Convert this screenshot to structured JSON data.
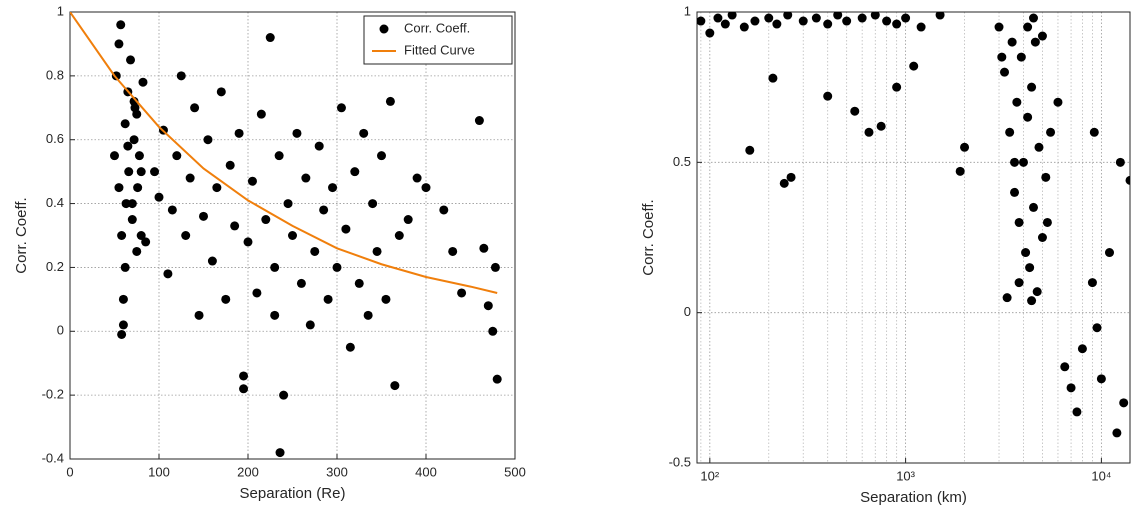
{
  "chart_data": [
    {
      "type": "scatter",
      "xlabel": "Separation (Re)",
      "ylabel": "Corr. Coeff.",
      "xlim": [
        0,
        500
      ],
      "ylim": [
        -0.4,
        1
      ],
      "xticks": [
        0,
        100,
        200,
        300,
        400,
        500
      ],
      "yticks": [
        -0.4,
        -0.2,
        0,
        0.2,
        0.4,
        0.6,
        0.8,
        1
      ],
      "grid": true,
      "legend": "upper right",
      "series": [
        {
          "name": "Corr. Coeff.",
          "type": "scatter",
          "color": "#000000",
          "x": [
            50,
            52,
            55,
            57,
            58,
            60,
            62,
            63,
            65,
            66,
            68,
            70,
            72,
            73,
            75,
            76,
            78,
            80,
            82,
            55,
            60,
            65,
            70,
            75,
            80,
            58,
            62,
            72,
            85,
            95,
            100,
            105,
            110,
            115,
            120,
            125,
            130,
            135,
            140,
            145,
            150,
            155,
            160,
            165,
            170,
            175,
            180,
            185,
            190,
            195,
            200,
            205,
            210,
            215,
            220,
            225,
            230,
            235,
            240,
            245,
            250,
            255,
            260,
            265,
            270,
            275,
            280,
            285,
            290,
            295,
            300,
            305,
            310,
            315,
            320,
            325,
            330,
            335,
            340,
            345,
            350,
            355,
            360,
            365,
            370,
            380,
            390,
            400,
            420,
            430,
            440,
            460,
            465,
            470,
            475,
            478,
            480,
            230,
            236,
            195
          ],
          "values": [
            0.55,
            0.8,
            0.45,
            0.96,
            0.3,
            0.1,
            0.65,
            0.4,
            0.75,
            0.5,
            0.85,
            0.35,
            0.6,
            0.7,
            0.25,
            0.45,
            0.55,
            0.3,
            0.78,
            0.9,
            0.02,
            0.58,
            0.4,
            0.68,
            0.5,
            -0.01,
            0.2,
            0.72,
            0.28,
            0.5,
            0.42,
            0.63,
            0.18,
            0.38,
            0.55,
            0.8,
            0.3,
            0.48,
            0.7,
            0.05,
            0.36,
            0.6,
            0.22,
            0.45,
            0.75,
            0.1,
            0.52,
            0.33,
            0.62,
            -0.14,
            0.28,
            0.47,
            0.12,
            0.68,
            0.35,
            0.92,
            0.2,
            0.55,
            -0.2,
            0.4,
            0.3,
            0.62,
            0.15,
            0.48,
            0.02,
            0.25,
            0.58,
            0.38,
            0.1,
            0.45,
            0.2,
            0.7,
            0.32,
            -0.05,
            0.5,
            0.15,
            0.62,
            0.05,
            0.4,
            0.25,
            0.55,
            0.1,
            0.72,
            -0.17,
            0.3,
            0.35,
            0.48,
            0.45,
            0.38,
            0.25,
            0.12,
            0.66,
            0.26,
            0.08,
            0.0,
            0.2,
            -0.15,
            0.05,
            -0.38,
            -0.18
          ]
        },
        {
          "name": "Fitted Curve",
          "type": "line",
          "color": "#f07f0c",
          "x": [
            0,
            50,
            100,
            150,
            200,
            250,
            300,
            350,
            400,
            450,
            480
          ],
          "values": [
            1,
            0.8,
            0.64,
            0.51,
            0.41,
            0.33,
            0.26,
            0.21,
            0.17,
            0.14,
            0.12
          ]
        }
      ]
    },
    {
      "type": "scatter",
      "xlabel": "Separation (km)",
      "ylabel": "Corr. Coeff.",
      "xlog": true,
      "xlim": [
        86,
        14000
      ],
      "ylim": [
        -0.5,
        1
      ],
      "xticks": [
        {
          "value": 100,
          "label": "10²"
        },
        {
          "value": 1000,
          "label": "10³"
        },
        {
          "value": 10000,
          "label": "10⁴"
        }
      ],
      "xminorticks": [
        90,
        200,
        300,
        400,
        500,
        600,
        700,
        800,
        900,
        2000,
        3000,
        4000,
        5000,
        6000,
        7000,
        8000,
        9000
      ],
      "yticks": [
        -0.5,
        0,
        0.5,
        1
      ],
      "grid": true,
      "series": [
        {
          "name": "Corr. Coeff.",
          "type": "scatter",
          "color": "#000000",
          "x": [
            70,
            75,
            80,
            90,
            100,
            110,
            120,
            130,
            150,
            170,
            200,
            220,
            250,
            300,
            350,
            400,
            450,
            500,
            600,
            700,
            800,
            900,
            1000,
            1200,
            1500,
            160,
            210,
            240,
            260,
            400,
            550,
            650,
            750,
            900,
            1100,
            1900,
            2000,
            3000,
            3200,
            3400,
            3500,
            3600,
            3700,
            3800,
            3900,
            4000,
            4100,
            4200,
            4300,
            4400,
            4500,
            4600,
            4800,
            5000,
            5200,
            5500,
            6000,
            3300,
            3800,
            4200,
            4700,
            5300,
            3100,
            3600,
            4400,
            6500,
            7000,
            7500,
            8000,
            9000,
            9500,
            10000,
            11000,
            12000,
            13000,
            14000,
            4500,
            5000,
            9200,
            12500
          ],
          "values": [
            0.98,
            0.96,
            0.99,
            0.97,
            0.93,
            0.98,
            0.96,
            0.99,
            0.95,
            0.97,
            0.98,
            0.96,
            0.99,
            0.97,
            0.98,
            0.96,
            0.99,
            0.97,
            0.98,
            0.99,
            0.97,
            0.96,
            0.98,
            0.95,
            0.99,
            0.54,
            0.78,
            0.43,
            0.45,
            0.72,
            0.67,
            0.6,
            0.62,
            0.75,
            0.82,
            0.47,
            0.55,
            0.95,
            0.8,
            0.6,
            0.9,
            0.4,
            0.7,
            0.3,
            0.85,
            0.5,
            0.2,
            0.65,
            0.15,
            0.75,
            0.35,
            0.9,
            0.55,
            0.25,
            0.45,
            0.6,
            0.7,
            0.05,
            0.1,
            0.95,
            0.07,
            0.3,
            0.85,
            0.5,
            0.04,
            -0.18,
            -0.25,
            -0.33,
            -0.12,
            0.1,
            -0.05,
            -0.22,
            0.2,
            -0.4,
            -0.3,
            0.44,
            0.98,
            0.92,
            0.6,
            0.5
          ]
        }
      ]
    }
  ]
}
